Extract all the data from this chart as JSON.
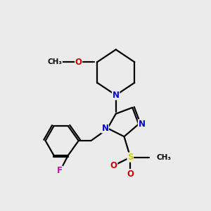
{
  "bg_color": "#ebebeb",
  "atom_colors": {
    "N": "#0000cc",
    "O": "#cc0000",
    "F": "#cc00cc",
    "S": "#cccc00",
    "C": "#000000"
  },
  "bond_color": "#000000",
  "bond_width": 1.6,
  "font_size_atom": 8.5
}
